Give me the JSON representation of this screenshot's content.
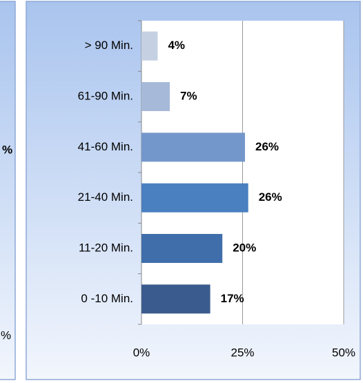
{
  "left_panel": {
    "texts": [
      "%",
      "%"
    ]
  },
  "chart_data": {
    "type": "barh",
    "categories": [
      "> 90 Min.",
      "61-90 Min.",
      "41-60 Min.",
      "21-40 Min.",
      "11-20 Min.",
      "0 -10 Min."
    ],
    "values": [
      4,
      7,
      25.6,
      26.4,
      20,
      17
    ],
    "value_labels": [
      "4%",
      "7%",
      "26%",
      "26%",
      "20%",
      "17%"
    ],
    "colors": [
      "#c5d0e3",
      "#a6b9d9",
      "#7497cb",
      "#4a7fc0",
      "#3f6eaa",
      "#3a5b8d"
    ],
    "xlim": [
      0,
      50
    ],
    "xticks": [
      {
        "value": 0,
        "label": "0%"
      },
      {
        "value": 25,
        "label": "25%"
      },
      {
        "value": 50,
        "label": "50%"
      }
    ],
    "grid": true
  }
}
